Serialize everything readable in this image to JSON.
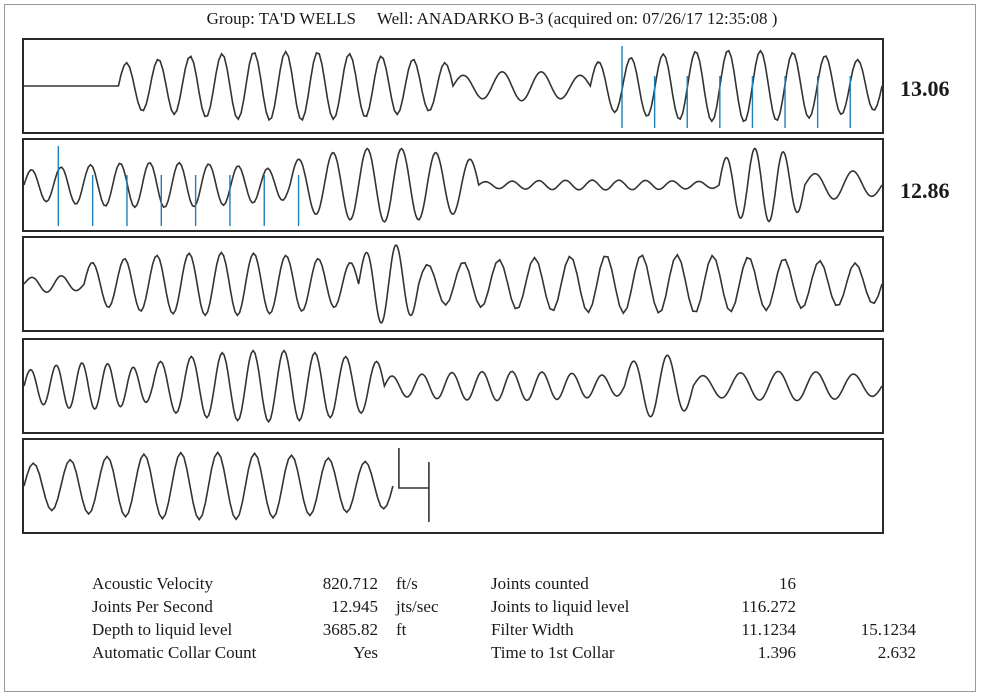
{
  "header": {
    "group": "Group: TA'D WELLS",
    "well": "Well: ANADARKO B-3 (acquired on: 07/26/17 12:35:08 )"
  },
  "side_labels": {
    "row1": "13.06",
    "row2": "12.86"
  },
  "colors": {
    "trace": "#333333",
    "collar_marker": "#1f7fb8",
    "frame": "#2a2a2a"
  },
  "stats": {
    "left": [
      {
        "label": "Acoustic Velocity",
        "value": "820.712",
        "unit": "ft/s"
      },
      {
        "label": "Joints Per Second",
        "value": "12.945",
        "unit": "jts/sec"
      },
      {
        "label": "Depth to liquid level",
        "value": "3685.82",
        "unit": "ft"
      },
      {
        "label": "Automatic Collar Count",
        "value": "Yes",
        "unit": ""
      }
    ],
    "right": [
      {
        "label": "Joints counted",
        "value1": "16",
        "value2": ""
      },
      {
        "label": "Joints to liquid level",
        "value1": "116.272",
        "value2": ""
      },
      {
        "label": "Filter Width",
        "value1": "11.1234",
        "value2": "15.1234"
      },
      {
        "label": "Time to 1st Collar",
        "value1": "1.396",
        "value2": "2.632"
      }
    ]
  },
  "chart_data": {
    "type": "line",
    "title": "Group: TA'D WELLS     Well: ANADARKO B-3 (acquired on: 07/26/17 12:35:08 )",
    "xlabel": "",
    "ylabel": "",
    "grid": false,
    "panels": [
      {
        "name": "row1",
        "label": "13.06",
        "segments": [
          {
            "x": [
              0,
              0.11
            ],
            "amp": 0,
            "cycles": 0
          },
          {
            "x": [
              0.11,
              0.5
            ],
            "amp": 0.82,
            "cycles": 10.5
          },
          {
            "x": [
              0.5,
              0.66
            ],
            "amp": 0.35,
            "cycles": 3.5
          },
          {
            "x": [
              0.66,
              1.0
            ],
            "amp": 0.85,
            "cycles": 9
          }
        ],
        "markers": [
          0.697,
          0.735,
          0.773,
          0.811,
          0.849,
          0.887,
          0.925,
          0.963
        ]
      },
      {
        "name": "row2",
        "label": "12.86",
        "segments": [
          {
            "x": [
              0,
              0.31
            ],
            "amp": 0.55,
            "cycles": 9
          },
          {
            "x": [
              0.31,
              0.53
            ],
            "amp": 0.9,
            "cycles": 5.5
          },
          {
            "x": [
              0.53,
              0.81
            ],
            "amp": 0.12,
            "cycles": 9
          },
          {
            "x": [
              0.81,
              0.91
            ],
            "amp": 0.9,
            "cycles": 3
          },
          {
            "x": [
              0.91,
              1.0
            ],
            "amp": 0.35,
            "cycles": 2
          }
        ],
        "markers": [
          0.04,
          0.08,
          0.12,
          0.16,
          0.2,
          0.24,
          0.28,
          0.32
        ]
      },
      {
        "name": "row3",
        "segments": [
          {
            "x": [
              0,
              0.07
            ],
            "amp": 0.2,
            "cycles": 2
          },
          {
            "x": [
              0.07,
              0.39
            ],
            "amp": 0.75,
            "cycles": 8.5
          },
          {
            "x": [
              0.39,
              0.46
            ],
            "amp": 0.95,
            "cycles": 2
          },
          {
            "x": [
              0.46,
              1.0
            ],
            "amp": 0.7,
            "cycles": 13
          }
        ],
        "markers": []
      },
      {
        "name": "row4",
        "segments": [
          {
            "x": [
              0,
              0.15
            ],
            "amp": 0.55,
            "cycles": 5
          },
          {
            "x": [
              0.15,
              0.42
            ],
            "amp": 0.85,
            "cycles": 7.5
          },
          {
            "x": [
              0.42,
              0.7
            ],
            "amp": 0.35,
            "cycles": 8
          },
          {
            "x": [
              0.7,
              0.78
            ],
            "amp": 0.75,
            "cycles": 2
          },
          {
            "x": [
              0.78,
              1.0
            ],
            "amp": 0.35,
            "cycles": 5
          }
        ],
        "markers": []
      },
      {
        "name": "row5",
        "segments": [
          {
            "x": [
              0,
              0.43
            ],
            "amp": 0.8,
            "cycles": 10
          }
        ],
        "step": true,
        "markers": []
      }
    ]
  }
}
